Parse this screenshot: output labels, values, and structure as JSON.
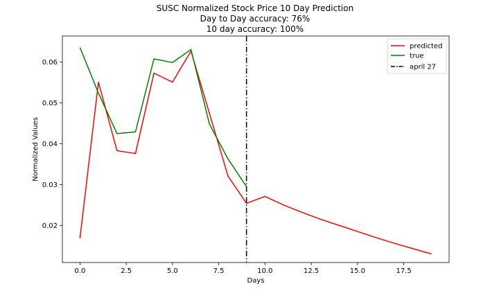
{
  "chart_data": {
    "type": "line",
    "title": [
      "SUSC Normalized Stock Price 10 Day Prediction",
      "Day to Day accuracy: 76%",
      "10 day accuracy: 100%"
    ],
    "xlabel": "Days",
    "ylabel": "Normalized Values",
    "xlim": [
      -0.95,
      19.95
    ],
    "ylim": [
      0.0109,
      0.0664
    ],
    "xticks": [
      0.0,
      2.5,
      5.0,
      7.5,
      10.0,
      12.5,
      15.0,
      17.5
    ],
    "xtick_labels": [
      "0.0",
      "2.5",
      "5.0",
      "7.5",
      "10.0",
      "12.5",
      "15.0",
      "17.5"
    ],
    "yticks": [
      0.02,
      0.03,
      0.04,
      0.05,
      0.06
    ],
    "ytick_labels": [
      "0.02",
      "0.03",
      "0.04",
      "0.05",
      "0.06"
    ],
    "grid": false,
    "legend_position": "top-right",
    "series": [
      {
        "name": "predicted",
        "color": "#ff0000",
        "style": "solid",
        "x": [
          0,
          1,
          2,
          3,
          4,
          5,
          6,
          7,
          8,
          9,
          10,
          11,
          12,
          13,
          14,
          15,
          16,
          17,
          18,
          19
        ],
        "values": [
          0.0168,
          0.0551,
          0.0383,
          0.0376,
          0.0573,
          0.0551,
          0.0627,
          0.0474,
          0.0321,
          0.0254,
          0.0271,
          0.025,
          0.0232,
          0.0215,
          0.02,
          0.0185,
          0.017,
          0.0156,
          0.0143,
          0.013
        ]
      },
      {
        "name": "true",
        "color": "#008000",
        "style": "solid",
        "x": [
          0,
          1,
          2,
          3,
          4,
          5,
          6,
          7,
          8,
          9
        ],
        "values": [
          0.0636,
          0.0524,
          0.0425,
          0.0429,
          0.0608,
          0.0599,
          0.0631,
          0.0448,
          0.0363,
          0.0295
        ]
      }
    ],
    "vlines": [
      {
        "name": "april 27",
        "x": 9,
        "color": "#000000",
        "style": "dashdot"
      }
    ]
  }
}
